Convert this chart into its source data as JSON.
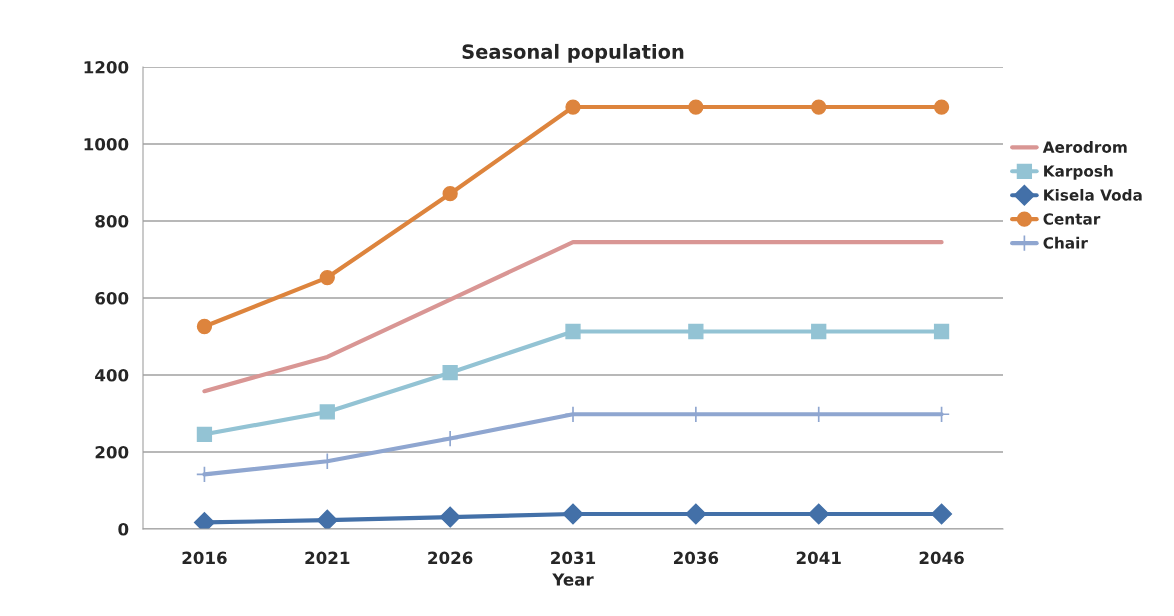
{
  "chart_data": {
    "type": "line",
    "title": "Seasonal population",
    "xlabel": "Year",
    "categories": [
      "2016",
      "2021",
      "2026",
      "2031",
      "2036",
      "2041",
      "2046"
    ],
    "ylim": [
      0,
      1200
    ],
    "yticks": [
      0,
      200,
      400,
      600,
      800,
      1000,
      1200
    ],
    "grid": "y",
    "legend": "right",
    "series": [
      {
        "name": "Aerodrom",
        "color": "#d99694",
        "marker": "none",
        "values": [
          358,
          447,
          596,
          745,
          745,
          745,
          745
        ]
      },
      {
        "name": "Karposh",
        "color": "#93c3d4",
        "marker": "square",
        "values": [
          246,
          304,
          406,
          513,
          513,
          513,
          513
        ]
      },
      {
        "name": "Kisela Voda",
        "color": "#4370a8",
        "marker": "diamond",
        "values": [
          17,
          23,
          31,
          39,
          39,
          39,
          39
        ]
      },
      {
        "name": "Centar",
        "color": "#dd843d",
        "marker": "circle",
        "values": [
          526,
          653,
          871,
          1096,
          1096,
          1096,
          1096
        ]
      },
      {
        "name": "Chair",
        "color": "#8fa6d0",
        "marker": "cross",
        "values": [
          142,
          176,
          235,
          298,
          298,
          298,
          298
        ]
      }
    ]
  }
}
